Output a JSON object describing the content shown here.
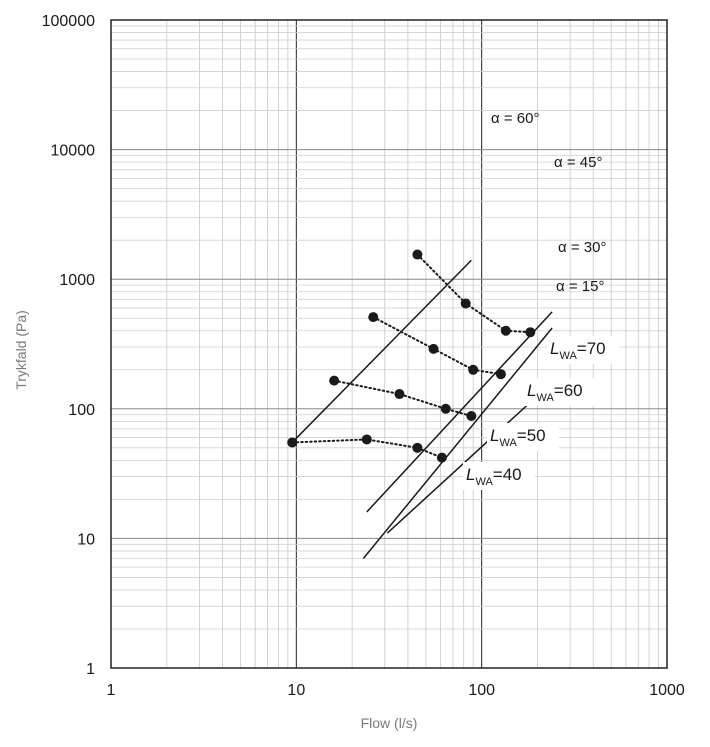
{
  "chart_data": {
    "type": "line",
    "xscale": "log",
    "yscale": "log",
    "xlim": [
      1,
      1000
    ],
    "ylim": [
      1,
      100000
    ],
    "xlabel": "Flow (l/s)",
    "ylabel": "Trykfald (Pa)",
    "x_ticks": [
      "1",
      "10",
      "100",
      "1000"
    ],
    "y_ticks": [
      "1",
      "10",
      "100",
      "1000",
      "10000",
      "100000"
    ],
    "grid": true,
    "angle_series": [
      {
        "name": "α = 60°",
        "x": [
          9.5,
          88
        ],
        "y": [
          55,
          1400
        ]
      },
      {
        "name": "α = 45°",
        "x": [
          24,
          240
        ],
        "y": [
          16,
          560
        ]
      },
      {
        "name": "α = 30°",
        "x": [
          31,
          240
        ],
        "y": [
          11,
          160
        ]
      },
      {
        "name": "α = 15°",
        "x": [
          23,
          240
        ],
        "y": [
          7,
          420
        ]
      }
    ],
    "lwa_series": [
      {
        "name_main": "L",
        "name_sub": "WA",
        "name_tail": "=70",
        "x": [
          45,
          82,
          135,
          183
        ],
        "y": [
          1550,
          650,
          400,
          390
        ]
      },
      {
        "name_main": "L",
        "name_sub": "WA",
        "name_tail": "=60",
        "x": [
          26,
          55,
          90,
          127
        ],
        "y": [
          510,
          290,
          200,
          185
        ]
      },
      {
        "name_main": "L",
        "name_sub": "WA",
        "name_tail": "=50",
        "x": [
          16,
          36,
          64,
          88
        ],
        "y": [
          165,
          130,
          100,
          88
        ]
      },
      {
        "name_main": "L",
        "name_sub": "WA",
        "name_tail": "=40",
        "x": [
          9.5,
          24,
          45,
          61
        ],
        "y": [
          55,
          58,
          50,
          42
        ]
      }
    ]
  }
}
